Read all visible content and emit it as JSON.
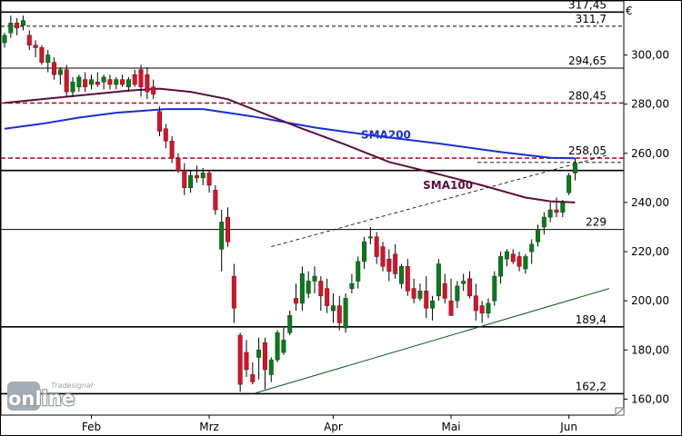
{
  "chart_data": {
    "type": "candlestick",
    "currency_label": "€",
    "y_ticks": [
      160,
      180,
      200,
      220,
      240,
      260,
      280,
      300
    ],
    "y_tick_labels": [
      "160,00",
      "180,00",
      "200,00",
      "220,00",
      "240,00",
      "260,00",
      "280,00",
      "300,00"
    ],
    "ylim": [
      153.5,
      322
    ],
    "x_labels": [
      {
        "label": "Feb",
        "index": 14
      },
      {
        "label": "Mrz",
        "index": 33
      },
      {
        "label": "Apr",
        "index": 53
      },
      {
        "label": "Mai",
        "index": 72
      },
      {
        "label": "Jun",
        "index": 91
      }
    ],
    "candles": [
      [
        305,
        309,
        303,
        308
      ],
      [
        309,
        316,
        307,
        313
      ],
      [
        313,
        315,
        308,
        311
      ],
      [
        312,
        316,
        310,
        314
      ],
      [
        308,
        310,
        302,
        304
      ],
      [
        304,
        306,
        299,
        303
      ],
      [
        303,
        304,
        296,
        297
      ],
      [
        297,
        302,
        293,
        300
      ],
      [
        297,
        299,
        290,
        292
      ],
      [
        292,
        295,
        288,
        294
      ],
      [
        294,
        296,
        283,
        285
      ],
      [
        285,
        291,
        283,
        289
      ],
      [
        287,
        292,
        285,
        291
      ],
      [
        290,
        293,
        285,
        287
      ],
      [
        288,
        292,
        286,
        290
      ],
      [
        289,
        293,
        287,
        288
      ],
      [
        289,
        292,
        286,
        291
      ],
      [
        290,
        292,
        286,
        288
      ],
      [
        288,
        291,
        286,
        290
      ],
      [
        290,
        292,
        287,
        288
      ],
      [
        287,
        291,
        285,
        290
      ],
      [
        292,
        294,
        287,
        288
      ],
      [
        294,
        296,
        283,
        287
      ],
      [
        292,
        295,
        282,
        285
      ],
      [
        287,
        290,
        282,
        284
      ],
      [
        277,
        279,
        267,
        269
      ],
      [
        270,
        272,
        262,
        265
      ],
      [
        265,
        267,
        256,
        258
      ],
      [
        258,
        260,
        252,
        253
      ],
      [
        253,
        256,
        243,
        246
      ],
      [
        246,
        253,
        244,
        251
      ],
      [
        251,
        255,
        248,
        250
      ],
      [
        250,
        254,
        247,
        252
      ],
      [
        252,
        253,
        244,
        247
      ],
      [
        245,
        247,
        235,
        237
      ],
      [
        221,
        237,
        212,
        232
      ],
      [
        234,
        238,
        222,
        224
      ],
      [
        210,
        215,
        191,
        197
      ],
      [
        186,
        187,
        163,
        166
      ],
      [
        179,
        184,
        169,
        172
      ],
      [
        170,
        175,
        166,
        167
      ],
      [
        177,
        185,
        168,
        180
      ],
      [
        183,
        185,
        164,
        172
      ],
      [
        170,
        177,
        167,
        176
      ],
      [
        176,
        188,
        175,
        187
      ],
      [
        179,
        189,
        178,
        184
      ],
      [
        187,
        196,
        186,
        194
      ],
      [
        201,
        207,
        196,
        199
      ],
      [
        199,
        214,
        196,
        211
      ],
      [
        203,
        212,
        201,
        208
      ],
      [
        208,
        214,
        203,
        210
      ],
      [
        208,
        210,
        196,
        202
      ],
      [
        205,
        209,
        195,
        198
      ],
      [
        196,
        203,
        191,
        198
      ],
      [
        198,
        202,
        188,
        191
      ],
      [
        189,
        203,
        187,
        201
      ],
      [
        205,
        211,
        203,
        207
      ],
      [
        208,
        218,
        205,
        216
      ],
      [
        216,
        226,
        213,
        224
      ],
      [
        226,
        230,
        223,
        226
      ],
      [
        226,
        228,
        215,
        218
      ],
      [
        222,
        224,
        212,
        214
      ],
      [
        217,
        221,
        208,
        212
      ],
      [
        219,
        223,
        209,
        211
      ],
      [
        207,
        215,
        205,
        214
      ],
      [
        214,
        217,
        202,
        204
      ],
      [
        205,
        209,
        199,
        201
      ],
      [
        201,
        207,
        200,
        204
      ],
      [
        204,
        210,
        193,
        197
      ],
      [
        197,
        202,
        192,
        200
      ],
      [
        202,
        217,
        200,
        215
      ],
      [
        207,
        211,
        199,
        201
      ],
      [
        200,
        209,
        194,
        194
      ],
      [
        200,
        208,
        197,
        206
      ],
      [
        207,
        211,
        204,
        208
      ],
      [
        209,
        212,
        201,
        202
      ],
      [
        202,
        207,
        192,
        196
      ],
      [
        198,
        200,
        191,
        195
      ],
      [
        195,
        201,
        193,
        199
      ],
      [
        200,
        212,
        198,
        210
      ],
      [
        210,
        220,
        207,
        218
      ],
      [
        217,
        221,
        214,
        220
      ],
      [
        219,
        221,
        215,
        216
      ],
      [
        218,
        220,
        212,
        214
      ],
      [
        213,
        219,
        211,
        218
      ],
      [
        220,
        225,
        215,
        223
      ],
      [
        224,
        231,
        222,
        229
      ],
      [
        230,
        236,
        227,
        234
      ],
      [
        234,
        240,
        232,
        237
      ],
      [
        237,
        242,
        234,
        236
      ],
      [
        236,
        241,
        234,
        240
      ],
      [
        244,
        252,
        243,
        251
      ],
      [
        252,
        258,
        249,
        256
      ]
    ],
    "sma100": [
      [
        0,
        280.5
      ],
      [
        10,
        283
      ],
      [
        20,
        285.5
      ],
      [
        25,
        286.3
      ],
      [
        30,
        285
      ],
      [
        36,
        282
      ],
      [
        42,
        276
      ],
      [
        48,
        270
      ],
      [
        55,
        263.5
      ],
      [
        62,
        256.5
      ],
      [
        70,
        251.5
      ],
      [
        77,
        247
      ],
      [
        84,
        242
      ],
      [
        88,
        240.5
      ],
      [
        92,
        240
      ]
    ],
    "sma200": [
      [
        0,
        270
      ],
      [
        6,
        272
      ],
      [
        12,
        274.5
      ],
      [
        18,
        276.5
      ],
      [
        26,
        278
      ],
      [
        32,
        278
      ],
      [
        40,
        275
      ],
      [
        50,
        270.5
      ],
      [
        60,
        267
      ],
      [
        70,
        264
      ],
      [
        80,
        260.5
      ],
      [
        88,
        258.2
      ],
      [
        92,
        258
      ]
    ],
    "sma_labels": [
      {
        "text": "SMA200",
        "index": 61.5,
        "value": 266
      },
      {
        "text": "SMA100",
        "index": 71.5,
        "value": 245.5
      }
    ],
    "levels": [
      {
        "value": 317.45,
        "label": "317,45",
        "style": "solid-black"
      },
      {
        "value": 311.7,
        "label": "311,7",
        "style": "dashed-black"
      },
      {
        "value": 294.65,
        "label": "294,65",
        "style": "dashed-short"
      },
      {
        "value": 294.65,
        "label": "",
        "style": "thin-black"
      },
      {
        "value": 280.45,
        "label": "280,45",
        "style": "dashed-red"
      },
      {
        "value": 258.05,
        "label": "258,05",
        "style": "dashed-red"
      },
      {
        "value": 256.3,
        "label": "",
        "style": "dashed-short"
      },
      {
        "value": 253,
        "label": "",
        "style": "solid-black"
      },
      {
        "value": 229,
        "label": "229",
        "style": "thin-black"
      },
      {
        "value": 189.4,
        "label": "189,4",
        "style": "solid-black"
      },
      {
        "value": 162.2,
        "label": "162,2",
        "style": "solid-black"
      }
    ],
    "trendlines": [
      {
        "from": [
          40.5,
          162.5
        ],
        "to": [
          97.5,
          205
        ],
        "style": "solid-green"
      },
      {
        "from": [
          43,
          222
        ],
        "to": [
          97.5,
          259.5
        ],
        "style": "dashed-thin"
      }
    ]
  },
  "watermark": {
    "logo_small": "Tradesignal",
    "logo_main": "online"
  },
  "corner_icon": "resize-grip-icon"
}
